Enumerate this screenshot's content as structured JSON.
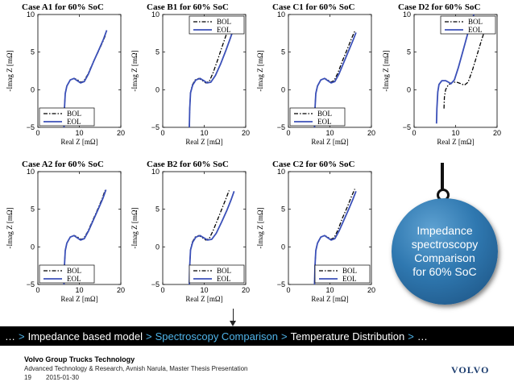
{
  "chart_data": [
    {
      "type": "line",
      "title": "Case A1 for 60% SoC",
      "xlabel": "Real Z [mΩ]",
      "ylabel": "-Imag Z [mΩ]",
      "xlim": [
        0,
        20
      ],
      "ylim": [
        -5,
        10
      ],
      "xticks": [
        0,
        10,
        20
      ],
      "yticks": [
        -5,
        0,
        5,
        10
      ],
      "legend": "bottom-left",
      "series": [
        {
          "name": "BOL",
          "style": "dash-dot",
          "x": [
            6.3,
            6.4,
            6.6,
            7.0,
            7.8,
            8.8,
            9.6,
            10.3,
            11.0,
            12.0,
            13.2,
            14.5,
            15.6,
            16.4
          ],
          "y": [
            -5.0,
            -2.5,
            -0.5,
            0.5,
            1.3,
            1.5,
            1.3,
            1.0,
            1.1,
            2.0,
            3.5,
            5.0,
            6.3,
            7.4
          ]
        },
        {
          "name": "EOL",
          "style": "solid",
          "x": [
            6.3,
            6.4,
            6.6,
            7.0,
            7.8,
            8.7,
            9.5,
            10.3,
            11.2,
            12.2,
            13.4,
            14.7,
            15.8,
            16.6
          ],
          "y": [
            -5.0,
            -2.5,
            -0.5,
            0.5,
            1.3,
            1.5,
            1.2,
            0.9,
            1.1,
            2.1,
            3.7,
            5.3,
            6.7,
            7.9
          ]
        }
      ]
    },
    {
      "type": "line",
      "title": "Case B1 for 60% SoC",
      "xlabel": "Real Z [mΩ]",
      "ylabel": "-Imag Z [mΩ]",
      "xlim": [
        0,
        20
      ],
      "ylim": [
        -5,
        10
      ],
      "xticks": [
        0,
        10,
        20
      ],
      "yticks": [
        -5,
        0,
        5,
        10
      ],
      "legend": "top-right",
      "series": [
        {
          "name": "BOL",
          "style": "dash-dot",
          "x": [
            6.4,
            6.5,
            6.7,
            7.1,
            7.8,
            8.7,
            9.6,
            10.4,
            11.2,
            12.1,
            13.2,
            14.3,
            15.3,
            16.0
          ],
          "y": [
            -5.0,
            -2.5,
            -0.4,
            0.6,
            1.3,
            1.5,
            1.2,
            0.9,
            1.1,
            2.2,
            3.9,
            5.7,
            7.3,
            8.4
          ]
        },
        {
          "name": "EOL",
          "style": "solid",
          "x": [
            6.4,
            6.5,
            6.7,
            7.2,
            8.0,
            9.0,
            9.9,
            10.7,
            11.6,
            12.7,
            14.0,
            15.2,
            16.2,
            16.9
          ],
          "y": [
            -5.0,
            -2.5,
            -0.4,
            0.6,
            1.3,
            1.5,
            1.2,
            0.9,
            1.0,
            1.9,
            3.5,
            5.2,
            6.7,
            7.8
          ]
        }
      ]
    },
    {
      "type": "line",
      "title": "Case C1 for 60% SoC",
      "xlabel": "Real Z [mΩ]",
      "ylabel": "-Imag Z [mΩ]",
      "xlim": [
        0,
        20
      ],
      "ylim": [
        -5,
        10
      ],
      "xticks": [
        0,
        10,
        20
      ],
      "yticks": [
        -5,
        0,
        5,
        10
      ],
      "legend": "bottom-left",
      "series": [
        {
          "name": "BOL",
          "style": "dash-dot",
          "x": [
            6.3,
            6.4,
            6.6,
            7.0,
            7.8,
            8.7,
            9.5,
            10.2,
            11.0,
            11.9,
            13.0,
            14.2,
            15.2,
            16.0
          ],
          "y": [
            -5.0,
            -2.5,
            -0.5,
            0.5,
            1.3,
            1.5,
            1.3,
            1.0,
            1.2,
            2.2,
            3.8,
            5.4,
            6.8,
            7.8
          ]
        },
        {
          "name": "EOL",
          "style": "solid",
          "x": [
            6.3,
            6.4,
            6.6,
            7.0,
            7.8,
            8.7,
            9.5,
            10.3,
            11.2,
            12.2,
            13.4,
            14.6,
            15.6,
            16.3
          ],
          "y": [
            -5.0,
            -2.5,
            -0.5,
            0.5,
            1.3,
            1.5,
            1.2,
            0.9,
            1.1,
            2.1,
            3.7,
            5.3,
            6.6,
            7.6
          ]
        }
      ]
    },
    {
      "type": "line",
      "title": "Case D2 for 60% SoC",
      "xlabel": "Real Z [mΩ]",
      "ylabel": "-Imag Z [mΩ]",
      "xlim": [
        0,
        20
      ],
      "ylim": [
        -5,
        10
      ],
      "xticks": [
        0,
        10,
        20
      ],
      "yticks": [
        -5,
        0,
        5,
        10
      ],
      "legend": "top-right",
      "series": [
        {
          "name": "BOL",
          "style": "dash-dot",
          "x": [
            7.2,
            7.3,
            7.6,
            8.2,
            9.2,
            10.3,
            11.3,
            12.1,
            13.0,
            14.0,
            15.1,
            16.2,
            17.2,
            18.0
          ],
          "y": [
            -2.5,
            -1.0,
            0.0,
            0.6,
            1.0,
            1.0,
            0.8,
            0.6,
            1.0,
            2.5,
            4.5,
            6.5,
            8.2,
            9.3
          ]
        },
        {
          "name": "EOL",
          "style": "solid",
          "x": [
            5.4,
            5.5,
            5.7,
            6.0,
            6.7,
            7.6,
            8.3,
            8.9,
            9.7,
            10.7,
            11.8,
            12.9,
            13.8,
            14.4
          ],
          "y": [
            -4.5,
            -2.5,
            -0.3,
            0.7,
            1.2,
            1.2,
            1.0,
            0.8,
            1.3,
            3.0,
            5.2,
            7.4,
            9.0,
            10.0
          ]
        }
      ]
    },
    {
      "type": "line",
      "title": "Case A2 for 60% SoC",
      "xlabel": "Real Z [mΩ]",
      "ylabel": "-Imag Z [mΩ]",
      "xlim": [
        0,
        20
      ],
      "ylim": [
        -5,
        10
      ],
      "xticks": [
        0,
        10,
        20
      ],
      "yticks": [
        -5,
        0,
        5,
        10
      ],
      "legend": "bottom-left",
      "series": [
        {
          "name": "BOL",
          "style": "dash-dot",
          "x": [
            6.3,
            6.4,
            6.6,
            7.0,
            7.8,
            8.8,
            9.6,
            10.3,
            11.0,
            12.0,
            13.2,
            14.5,
            15.5,
            16.2
          ],
          "y": [
            -5.0,
            -2.5,
            -0.5,
            0.5,
            1.3,
            1.5,
            1.3,
            1.0,
            1.1,
            2.0,
            3.5,
            5.1,
            6.4,
            7.5
          ]
        },
        {
          "name": "EOL",
          "style": "solid",
          "x": [
            6.3,
            6.4,
            6.6,
            7.0,
            7.8,
            8.7,
            9.5,
            10.3,
            11.2,
            12.2,
            13.4,
            14.7,
            15.7,
            16.4
          ],
          "y": [
            -5.0,
            -2.5,
            -0.5,
            0.5,
            1.3,
            1.5,
            1.2,
            0.9,
            1.1,
            2.1,
            3.6,
            5.2,
            6.5,
            7.6
          ]
        }
      ]
    },
    {
      "type": "line",
      "title": "Case B2 for 60% SoC",
      "xlabel": "Real Z [mΩ]",
      "ylabel": "-Imag Z [mΩ]",
      "xlim": [
        0,
        20
      ],
      "ylim": [
        -5,
        10
      ],
      "xticks": [
        0,
        10,
        20
      ],
      "yticks": [
        -5,
        0,
        5,
        10
      ],
      "legend": "bottom-right",
      "series": [
        {
          "name": "BOL",
          "style": "dash-dot",
          "x": [
            6.4,
            6.5,
            6.7,
            7.1,
            7.8,
            8.7,
            9.6,
            10.4,
            11.2,
            12.1,
            13.2,
            14.3,
            15.3,
            16.0
          ],
          "y": [
            -5.0,
            -2.5,
            -0.4,
            0.6,
            1.3,
            1.5,
            1.2,
            0.9,
            1.1,
            2.1,
            3.6,
            5.1,
            6.5,
            7.5
          ]
        },
        {
          "name": "EOL",
          "style": "solid",
          "x": [
            6.4,
            6.5,
            6.7,
            7.2,
            8.0,
            9.0,
            9.9,
            10.8,
            11.8,
            12.9,
            14.2,
            15.5,
            16.5,
            17.2
          ],
          "y": [
            -5.0,
            -2.5,
            -0.4,
            0.6,
            1.3,
            1.5,
            1.2,
            0.9,
            1.0,
            1.8,
            3.3,
            4.9,
            6.3,
            7.4
          ]
        }
      ]
    },
    {
      "type": "line",
      "title": "Case C2 for 60% SoC",
      "xlabel": "Real Z [mΩ]",
      "ylabel": "-Imag Z [mΩ]",
      "xlim": [
        0,
        20
      ],
      "ylim": [
        -5,
        10
      ],
      "xticks": [
        0,
        10,
        20
      ],
      "yticks": [
        -5,
        0,
        5,
        10
      ],
      "legend": "bottom-right",
      "series": [
        {
          "name": "BOL",
          "style": "dash-dot",
          "x": [
            6.3,
            6.4,
            6.6,
            7.0,
            7.8,
            8.7,
            9.5,
            10.2,
            11.0,
            11.9,
            13.0,
            14.2,
            15.2,
            16.0
          ],
          "y": [
            -5.0,
            -2.5,
            -0.5,
            0.5,
            1.3,
            1.5,
            1.3,
            1.0,
            1.2,
            2.2,
            3.8,
            5.3,
            6.7,
            7.7
          ]
        },
        {
          "name": "EOL",
          "style": "solid",
          "x": [
            6.3,
            6.4,
            6.6,
            7.0,
            7.8,
            8.7,
            9.5,
            10.3,
            11.2,
            12.2,
            13.4,
            14.6,
            15.6,
            16.3
          ],
          "y": [
            -5.0,
            -2.5,
            -0.5,
            0.5,
            1.3,
            1.5,
            1.2,
            0.9,
            1.1,
            2.1,
            3.6,
            5.1,
            6.4,
            7.4
          ]
        }
      ]
    }
  ],
  "callout": {
    "text": "Impedance\nspectroscopy\nComparison\nfor 60% SoC"
  },
  "breadcrumb": {
    "prefix": "…",
    "items": [
      "Impedance based model",
      "Spectroscopy Comparison",
      "Temperature Distribution",
      "…"
    ],
    "active_index": 1,
    "separator": ">",
    "active_color": "#4fb3e8"
  },
  "footer": {
    "company": "Volvo Group Trucks Technology",
    "subtitle": "Advanced Technology & Research, Avnish Narula, Master Thesis Presentation",
    "page_number": "19",
    "date": "2015-01-30",
    "logo": "VOLVO"
  },
  "colors": {
    "eol": "#3b50b8",
    "bol": "#000000"
  }
}
